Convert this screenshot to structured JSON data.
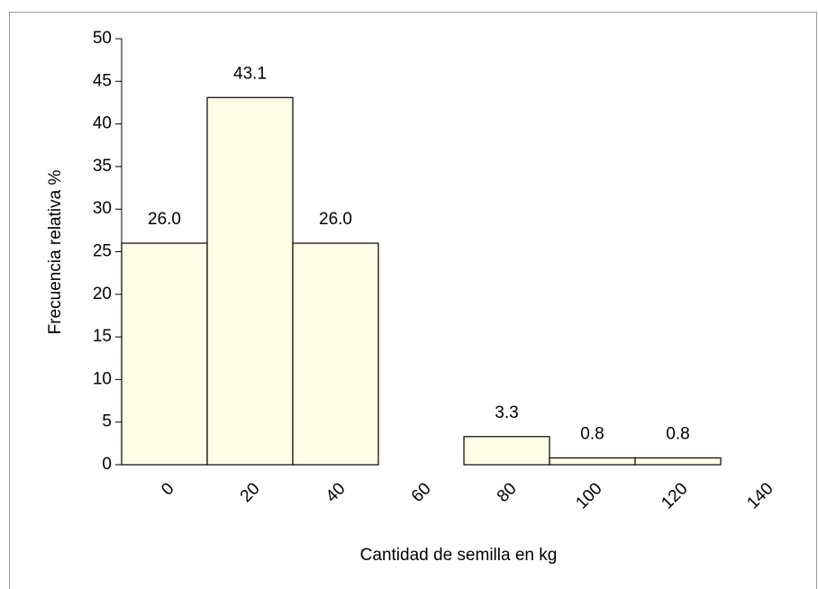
{
  "chart_data": {
    "type": "bar",
    "xlabel": "Cantidad de semilla en kg",
    "ylabel": "Frecuencia relativa %",
    "categories": [
      "0",
      "20",
      "40",
      "60",
      "80",
      "100",
      "120",
      "140"
    ],
    "values": [
      26.0,
      43.1,
      26.0,
      null,
      3.3,
      0.8,
      0.8,
      null
    ],
    "value_labels": [
      "26.0",
      "43.1",
      "26.0",
      null,
      "3.3",
      "0.8",
      "0.8",
      null
    ],
    "color": "#fefde6",
    "ylim": [
      0,
      50
    ],
    "yticks": [
      0,
      5,
      10,
      15,
      20,
      25,
      30,
      35,
      40,
      45,
      50
    ]
  }
}
